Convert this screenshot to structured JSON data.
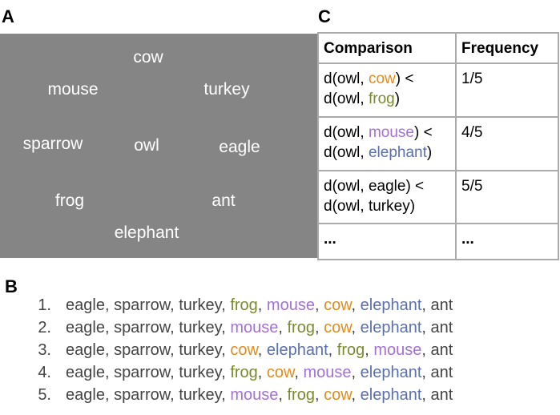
{
  "panel_a": {
    "label": "A",
    "words": [
      "cow",
      "mouse",
      "turkey",
      "sparrow",
      "owl",
      "eagle",
      "frog",
      "ant",
      "elephant"
    ]
  },
  "panel_b": {
    "label": "B",
    "separator": ", ",
    "rankings": [
      {
        "number": "1.",
        "items": [
          {
            "text": "eagle"
          },
          {
            "text": "sparrow"
          },
          {
            "text": "turkey"
          },
          {
            "text": "frog",
            "color": "#7a8a2e"
          },
          {
            "text": "mouse",
            "color": "#a470d8"
          },
          {
            "text": "cow",
            "color": "#e08c1e"
          },
          {
            "text": "elephant",
            "color": "#5a6fae"
          },
          {
            "text": "ant"
          }
        ]
      },
      {
        "number": "2.",
        "items": [
          {
            "text": "eagle"
          },
          {
            "text": "sparrow"
          },
          {
            "text": "turkey"
          },
          {
            "text": "mouse",
            "color": "#a470d8"
          },
          {
            "text": "frog",
            "color": "#7a8a2e"
          },
          {
            "text": "cow",
            "color": "#e08c1e"
          },
          {
            "text": "elephant",
            "color": "#5a6fae"
          },
          {
            "text": "ant"
          }
        ]
      },
      {
        "number": "3.",
        "items": [
          {
            "text": "eagle"
          },
          {
            "text": "sparrow"
          },
          {
            "text": "turkey"
          },
          {
            "text": "cow",
            "color": "#e08c1e"
          },
          {
            "text": "elephant",
            "color": "#5a6fae"
          },
          {
            "text": "frog",
            "color": "#7a8a2e"
          },
          {
            "text": "mouse",
            "color": "#a470d8"
          },
          {
            "text": "ant"
          }
        ]
      },
      {
        "number": "4.",
        "items": [
          {
            "text": "eagle"
          },
          {
            "text": "sparrow"
          },
          {
            "text": "turkey"
          },
          {
            "text": "frog",
            "color": "#7a8a2e"
          },
          {
            "text": "cow",
            "color": "#e08c1e"
          },
          {
            "text": "mouse",
            "color": "#a470d8"
          },
          {
            "text": "elephant",
            "color": "#5a6fae"
          },
          {
            "text": "ant"
          }
        ]
      },
      {
        "number": "5.",
        "items": [
          {
            "text": "eagle"
          },
          {
            "text": "sparrow"
          },
          {
            "text": "turkey"
          },
          {
            "text": "mouse",
            "color": "#a470d8"
          },
          {
            "text": "frog",
            "color": "#7a8a2e"
          },
          {
            "text": "cow",
            "color": "#e08c1e"
          },
          {
            "text": "elephant",
            "color": "#5a6fae"
          },
          {
            "text": "ant"
          }
        ]
      }
    ]
  },
  "panel_c": {
    "label": "C",
    "header": [
      "Comparison",
      "Frequency"
    ],
    "rows": [
      {
        "comparison": [
          [
            {
              "text": "d(owl, "
            },
            {
              "text": "cow",
              "color": "#e08c1e"
            },
            {
              "text": ") <"
            }
          ],
          [
            {
              "text": "d(owl, "
            },
            {
              "text": "frog",
              "color": "#7a8a2e"
            },
            {
              "text": ")"
            }
          ]
        ],
        "frequency": "1/5"
      },
      {
        "comparison": [
          [
            {
              "text": "d(owl, "
            },
            {
              "text": "mouse",
              "color": "#a470d8"
            },
            {
              "text": ") <"
            }
          ],
          [
            {
              "text": "d(owl, "
            },
            {
              "text": "elephant",
              "color": "#5a6fae"
            },
            {
              "text": ")"
            }
          ]
        ],
        "frequency": "4/5"
      },
      {
        "comparison": [
          [
            {
              "text": "d(owl, eagle) <"
            }
          ],
          [
            {
              "text": "d(owl, turkey)"
            }
          ]
        ],
        "frequency": "5/5"
      },
      {
        "comparison": [
          [
            {
              "text": "..."
            }
          ]
        ],
        "frequency": "..."
      }
    ]
  }
}
